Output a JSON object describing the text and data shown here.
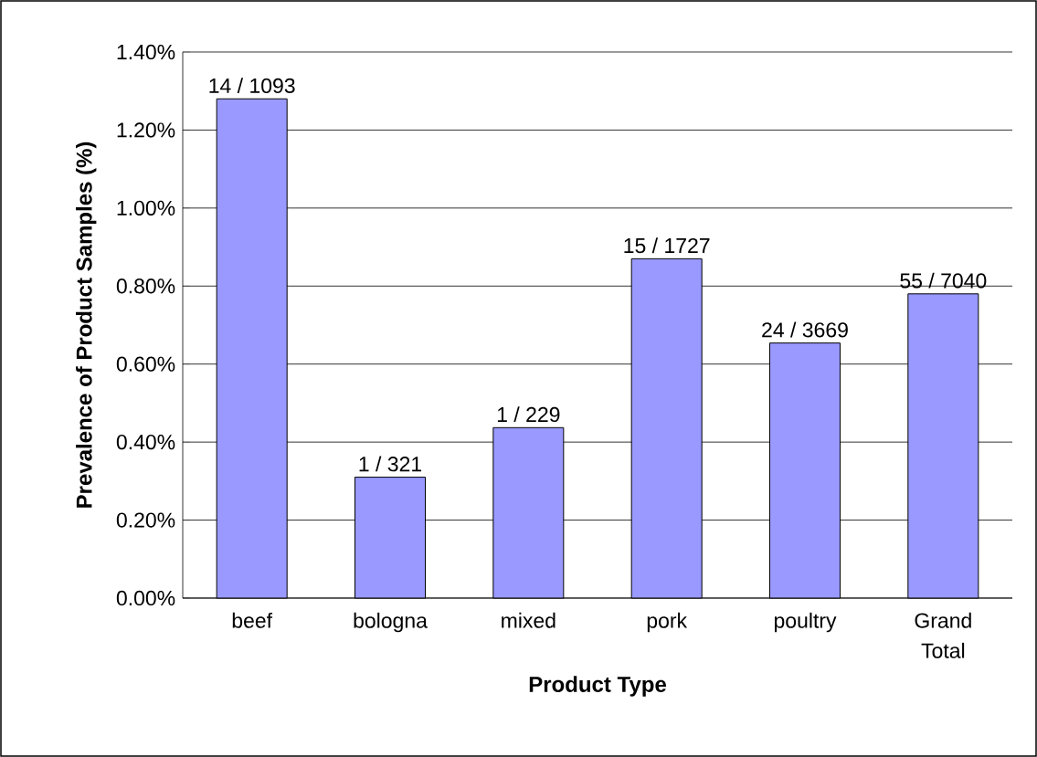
{
  "chart_data": {
    "type": "bar",
    "xlabel": "Product Type",
    "ylabel": "Prevalence of Product Samples (%)",
    "categories": [
      "beef",
      "bologna",
      "mixed",
      "pork",
      "poultry",
      "Grand Total"
    ],
    "values": [
      1.28,
      0.31,
      0.437,
      0.87,
      0.654,
      0.78
    ],
    "annotations": [
      {
        "text": "14 / 1093",
        "x": "beef",
        "y": 1.28
      },
      {
        "text": "1 / 321",
        "x": "bologna",
        "y": 0.31
      },
      {
        "text": "1 / 229",
        "x": "mixed",
        "y": 0.437
      },
      {
        "text": "15 / 1727",
        "x": "pork",
        "y": 0.87
      },
      {
        "text": "24 / 3669",
        "x": "poultry",
        "y": 0.654
      },
      {
        "text": "55 / 7040",
        "x": "Grand Total",
        "y": 0.78
      }
    ],
    "color": "#9999ff",
    "ylim": [
      0,
      1.4
    ],
    "yticks": [
      {
        "value": 0,
        "label": "0.00%"
      },
      {
        "value": 0.2,
        "label": "0.20%"
      },
      {
        "value": 0.4,
        "label": "0.40%"
      },
      {
        "value": 0.6,
        "label": "0.60%"
      },
      {
        "value": 0.8,
        "label": "0.80%"
      },
      {
        "value": 1.0,
        "label": "1.00%"
      },
      {
        "value": 1.2,
        "label": "1.20%"
      },
      {
        "value": 1.4,
        "label": "1.40%"
      }
    ],
    "grid": "y"
  }
}
